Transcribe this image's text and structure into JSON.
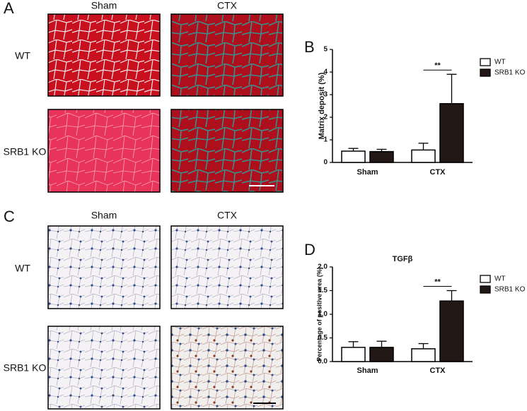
{
  "panels": {
    "a": {
      "letter": "A",
      "columns": [
        "Sham",
        "CTX"
      ],
      "rows": [
        "WT",
        "SRB1 KO"
      ]
    },
    "c": {
      "letter": "C",
      "columns": [
        "Sham",
        "CTX"
      ],
      "rows": [
        "WT",
        "SRB1 KO"
      ]
    },
    "b": {
      "letter": "B"
    },
    "d": {
      "letter": "D"
    }
  },
  "chart_data": [
    {
      "type": "bar",
      "ylabel": "Matrix deposit (%)",
      "categories": [
        "Sham",
        "CTX"
      ],
      "series": [
        {
          "name": "WT",
          "color": "#ffffff",
          "values": [
            0.5,
            0.55
          ],
          "errors": [
            0.12,
            0.3
          ]
        },
        {
          "name": "SRB1 KO",
          "color": "#231815",
          "values": [
            0.48,
            2.6
          ],
          "errors": [
            0.1,
            1.3
          ]
        }
      ],
      "ylim": [
        0,
        5
      ],
      "yticks": [
        0,
        1,
        2,
        3,
        4,
        5
      ],
      "annotation": "**"
    },
    {
      "type": "bar",
      "title": "TGFβ",
      "ylabel": "Percentage of positive area (%)",
      "categories": [
        "Sham",
        "CTX"
      ],
      "series": [
        {
          "name": "WT",
          "color": "#ffffff",
          "values": [
            0.3,
            0.27
          ],
          "errors": [
            0.12,
            0.11
          ]
        },
        {
          "name": "SRB1 KO",
          "color": "#231815",
          "values": [
            0.3,
            1.28
          ],
          "errors": [
            0.13,
            0.22
          ]
        }
      ],
      "ylim": [
        0,
        2.0
      ],
      "yticks": [
        {
          "value": 0,
          "label": "0.0"
        },
        0.5,
        {
          "value": 1,
          "label": "1.0"
        },
        1.5,
        {
          "value": 2,
          "label": "2.0"
        }
      ],
      "annotation": "**"
    }
  ]
}
